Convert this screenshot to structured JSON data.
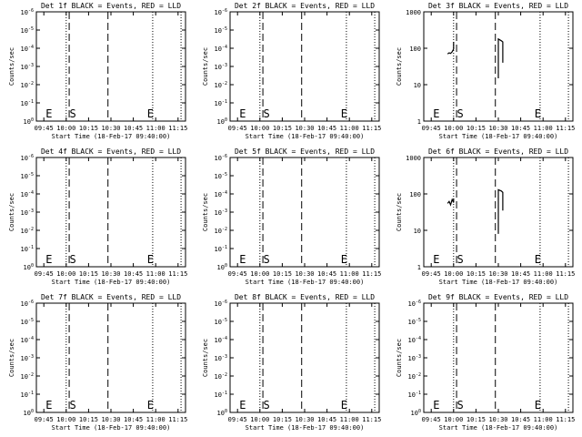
{
  "chart_data": [
    {
      "type": "line",
      "title": "Det 1f BLACK = Events, RED = LLD",
      "xlabel": "Start Time (18-Feb-17 09:40:00)",
      "ylabel": "Counts/sec",
      "x_ticks": [
        "09:45",
        "10:00",
        "10:15",
        "10:30",
        "10:45",
        "11:00",
        "11:15"
      ],
      "y_ticks": [
        "10^0",
        "10^-1",
        "10^-2",
        "10^-3",
        "10^-4",
        "10^-5",
        "10^-6"
      ],
      "y_scale": "log",
      "markers": [
        {
          "label": "E",
          "time": "09:45"
        },
        {
          "label": "S",
          "time": "10:01"
        },
        {
          "label": "E",
          "time": "10:53"
        }
      ],
      "series": []
    },
    {
      "type": "line",
      "title": "Det 2f BLACK = Events, RED = LLD",
      "xlabel": "Start Time (18-Feb-17 09:40:00)",
      "ylabel": "Counts/sec",
      "x_ticks": [
        "09:45",
        "10:00",
        "10:15",
        "10:30",
        "10:45",
        "11:00",
        "11:15"
      ],
      "y_ticks": [
        "10^0",
        "10^-1",
        "10^-2",
        "10^-3",
        "10^-4",
        "10^-5",
        "10^-6"
      ],
      "y_scale": "log",
      "markers": [
        {
          "label": "E",
          "time": "09:45"
        },
        {
          "label": "S",
          "time": "10:01"
        },
        {
          "label": "E",
          "time": "10:53"
        }
      ],
      "series": []
    },
    {
      "type": "line",
      "title": "Det 3f BLACK = Events, RED = LLD",
      "xlabel": "Start Time (18-Feb-17 09:40:00)",
      "ylabel": "Counts/sec",
      "x_ticks": [
        "09:45",
        "10:00",
        "10:15",
        "10:30",
        "10:45",
        "11:00",
        "11:15"
      ],
      "y_ticks": [
        "1",
        "10",
        "100",
        "1000"
      ],
      "y_scale": "log",
      "markers": [
        {
          "label": "E",
          "time": "09:45"
        },
        {
          "label": "S",
          "time": "10:01"
        },
        {
          "label": "E",
          "time": "10:53"
        }
      ],
      "series": [
        {
          "segments": [
            [
              [
                "09:56",
                70
              ],
              [
                "09:57",
                75
              ],
              [
                "09:58",
                72
              ],
              [
                "09:59",
                80
              ],
              [
                "10:00",
                95
              ],
              [
                "10:00",
                150
              ]
            ],
            [
              [
                "10:30",
                15
              ],
              [
                "10:30",
                180
              ],
              [
                "10:32",
                160
              ],
              [
                "10:33",
                150
              ],
              [
                "10:33",
                40
              ]
            ]
          ]
        }
      ]
    },
    {
      "type": "line",
      "title": "Det 4f BLACK = Events, RED = LLD",
      "xlabel": "Start Time (18-Feb-17 09:40:00)",
      "ylabel": "Counts/sec",
      "x_ticks": [
        "09:45",
        "10:00",
        "10:15",
        "10:30",
        "10:45",
        "11:00",
        "11:15"
      ],
      "y_ticks": [
        "10^0",
        "10^-1",
        "10^-2",
        "10^-3",
        "10^-4",
        "10^-5",
        "10^-6"
      ],
      "y_scale": "log",
      "markers": [
        {
          "label": "E",
          "time": "09:45"
        },
        {
          "label": "S",
          "time": "10:01"
        },
        {
          "label": "E",
          "time": "10:53"
        }
      ],
      "series": []
    },
    {
      "type": "line",
      "title": "Det 5f BLACK = Events, RED = LLD",
      "xlabel": "Start Time (18-Feb-17 09:40:00)",
      "ylabel": "Counts/sec",
      "x_ticks": [
        "09:45",
        "10:00",
        "10:15",
        "10:30",
        "10:45",
        "11:00",
        "11:15"
      ],
      "y_ticks": [
        "10^0",
        "10^-1",
        "10^-2",
        "10^-3",
        "10^-4",
        "10^-5",
        "10^-6"
      ],
      "y_scale": "log",
      "markers": [
        {
          "label": "E",
          "time": "09:45"
        },
        {
          "label": "S",
          "time": "10:01"
        },
        {
          "label": "E",
          "time": "10:53"
        }
      ],
      "series": []
    },
    {
      "type": "line",
      "title": "Det 6f BLACK = Events, RED = LLD",
      "xlabel": "Start Time (18-Feb-17 09:40:00)",
      "ylabel": "Counts/sec",
      "x_ticks": [
        "09:45",
        "10:00",
        "10:15",
        "10:30",
        "10:45",
        "11:00",
        "11:15"
      ],
      "y_ticks": [
        "1",
        "10",
        "100",
        "1000"
      ],
      "y_scale": "log",
      "markers": [
        {
          "label": "E",
          "time": "09:45"
        },
        {
          "label": "S",
          "time": "10:01"
        },
        {
          "label": "E",
          "time": "10:53"
        }
      ],
      "series": [
        {
          "segments": [
            [
              [
                "09:56",
                55
              ],
              [
                "09:57",
                62
              ],
              [
                "09:58",
                50
              ],
              [
                "09:59",
                70
              ],
              [
                "10:00",
                58
              ],
              [
                "10:00",
                75
              ]
            ],
            [
              [
                "10:30",
                8
              ],
              [
                "10:30",
                130
              ],
              [
                "10:32",
                120
              ],
              [
                "10:33",
                110
              ],
              [
                "10:33",
                35
              ]
            ]
          ]
        }
      ]
    },
    {
      "type": "line",
      "title": "Det 7f BLACK = Events, RED = LLD",
      "xlabel": "Start Time (18-Feb-17 09:40:00)",
      "ylabel": "Counts/sec",
      "x_ticks": [
        "09:45",
        "10:00",
        "10:15",
        "10:30",
        "10:45",
        "11:00",
        "11:15"
      ],
      "y_ticks": [
        "10^0",
        "10^-1",
        "10^-2",
        "10^-3",
        "10^-4",
        "10^-5",
        "10^-6"
      ],
      "y_scale": "log",
      "markers": [
        {
          "label": "E",
          "time": "09:45"
        },
        {
          "label": "S",
          "time": "10:01"
        },
        {
          "label": "E",
          "time": "10:53"
        }
      ],
      "series": []
    },
    {
      "type": "line",
      "title": "Det 8f BLACK = Events, RED = LLD",
      "xlabel": "Start Time (18-Feb-17 09:40:00)",
      "ylabel": "Counts/sec",
      "x_ticks": [
        "09:45",
        "10:00",
        "10:15",
        "10:30",
        "10:45",
        "11:00",
        "11:15"
      ],
      "y_ticks": [
        "10^0",
        "10^-1",
        "10^-2",
        "10^-3",
        "10^-4",
        "10^-5",
        "10^-6"
      ],
      "y_scale": "log",
      "markers": [
        {
          "label": "E",
          "time": "09:45"
        },
        {
          "label": "S",
          "time": "10:01"
        },
        {
          "label": "E",
          "time": "10:53"
        }
      ],
      "series": []
    },
    {
      "type": "line",
      "title": "Det 9f BLACK = Events, RED = LLD",
      "xlabel": "Start Time (18-Feb-17 09:40:00)",
      "ylabel": "Counts/sec",
      "x_ticks": [
        "09:45",
        "10:00",
        "10:15",
        "10:30",
        "10:45",
        "11:00",
        "11:15"
      ],
      "y_ticks": [
        "10^0",
        "10^-1",
        "10^-2",
        "10^-3",
        "10^-4",
        "10^-5",
        "10^-6"
      ],
      "y_scale": "log",
      "markers": [
        {
          "label": "E",
          "time": "09:45"
        },
        {
          "label": "S",
          "time": "10:01"
        },
        {
          "label": "E",
          "time": "10:53"
        }
      ],
      "series": []
    }
  ],
  "reference_lines": {
    "dotted": [
      "10:00",
      "10:58",
      "11:17"
    ],
    "dashed": [
      "10:02",
      "10:28"
    ]
  },
  "colors": {
    "events": "#000000",
    "lld": "#ff0000",
    "background": "#ffffff"
  }
}
